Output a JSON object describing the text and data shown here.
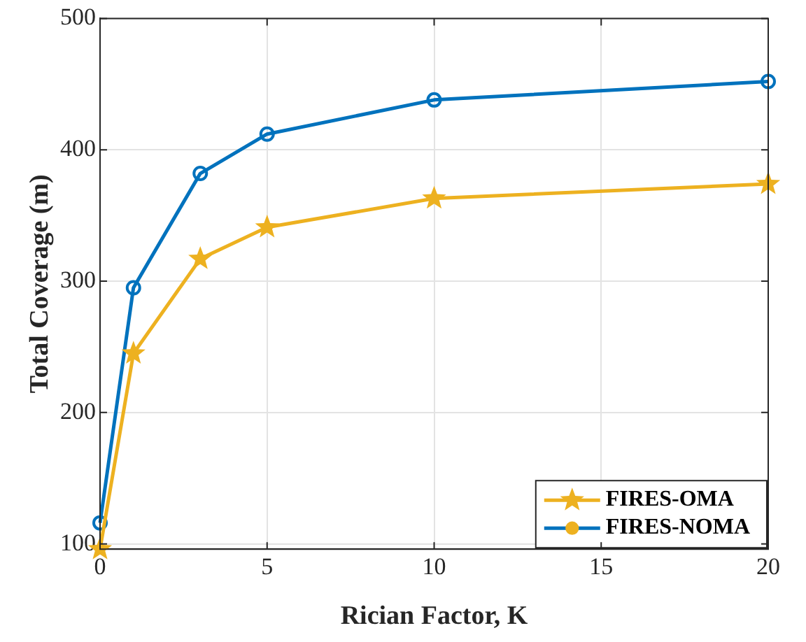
{
  "chart_data": {
    "type": "line",
    "xlabel": "Rician Factor, K",
    "ylabel": "Total Coverage (m)",
    "x": [
      0,
      1,
      3,
      5,
      10,
      20
    ],
    "series": [
      {
        "name": "FIRES-OMA",
        "color": "#edb120",
        "marker": "star",
        "values": [
          96,
          245,
          317,
          341,
          363,
          374
        ]
      },
      {
        "name": "FIRES-NOMA",
        "color": "#0072bd",
        "marker": "circle",
        "values": [
          116,
          295,
          382,
          412,
          438,
          452
        ]
      }
    ],
    "xlim": [
      0,
      20
    ],
    "xticks": [
      0,
      5,
      10,
      15,
      20
    ],
    "ylim": [
      96,
      500
    ],
    "yticks": [
      100,
      200,
      300,
      400,
      500
    ],
    "grid": true,
    "legend": "bottom right",
    "line_style": "solid"
  }
}
